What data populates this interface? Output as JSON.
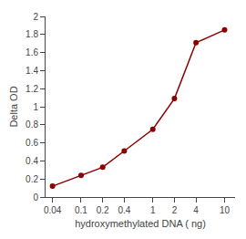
{
  "chart_data": {
    "type": "line",
    "x": [
      0.04,
      0.1,
      0.2,
      0.4,
      1,
      2,
      4,
      10
    ],
    "values": [
      0.12,
      0.24,
      0.33,
      0.51,
      0.75,
      1.09,
      1.71,
      1.85
    ],
    "color": "#8b0000",
    "marker": "circle",
    "xlabel": "hydroxymethylated DNA ( ng)",
    "ylabel": "Delta OD",
    "log": "x",
    "xlim": [
      0.032,
      14
    ],
    "xticks": [
      0.04,
      0.1,
      0.2,
      0.4,
      1,
      2,
      4,
      10
    ],
    "ylim": [
      0,
      2
    ],
    "yticks": [
      0,
      0.2,
      0.4,
      0.6,
      0.8,
      1,
      1.2,
      1.4,
      1.6,
      1.8,
      2
    ],
    "grid": false
  }
}
